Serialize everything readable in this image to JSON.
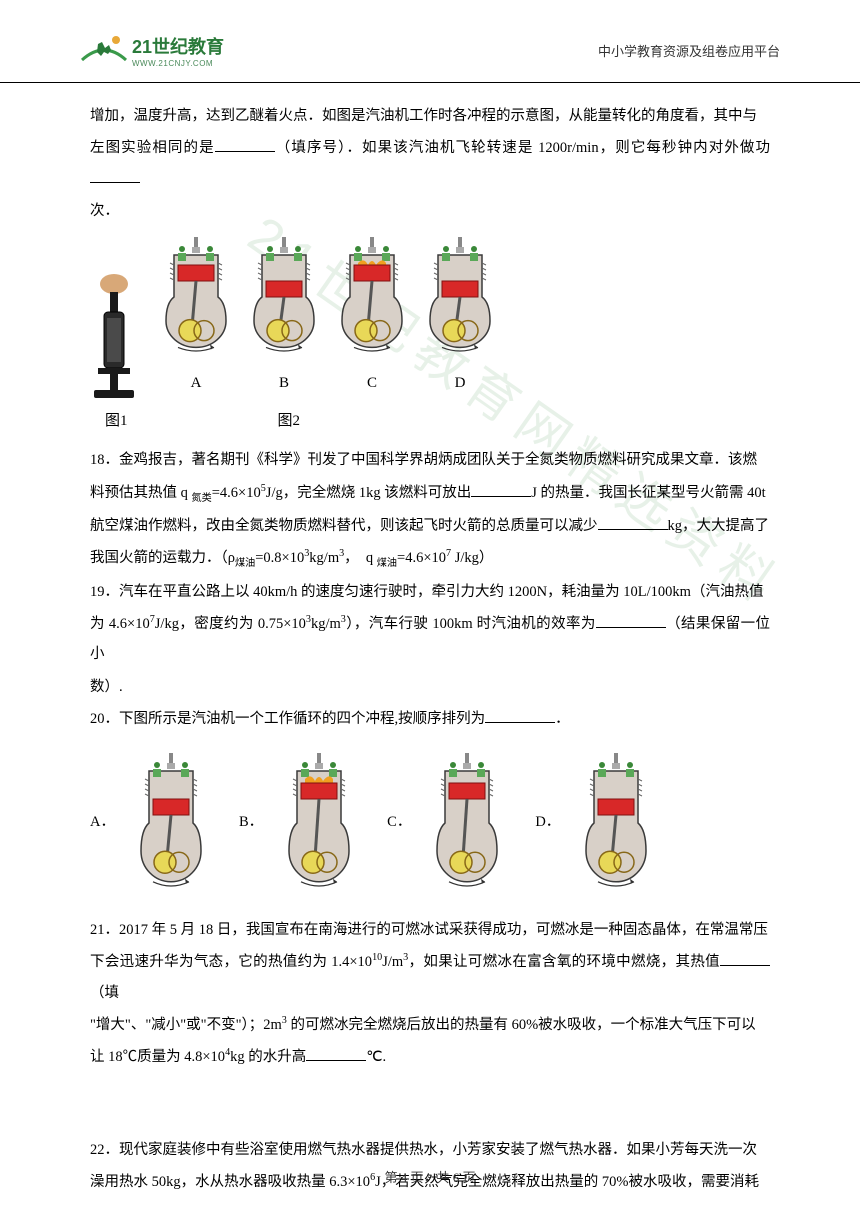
{
  "header": {
    "logo_main": "21世纪教育",
    "logo_sub": "WWW.21CNJY.COM",
    "right_text": "中小学教育资源及组卷应用平台"
  },
  "watermark_text": "21世纪教育网精选资料",
  "q17_cont": {
    "line1": "增加，温度升高，达到乙醚着火点．如图是汽油机工作时各冲程的示意图，从能量转化的角度看，其中与",
    "line2_a": "左图实验相同的是",
    "line2_b": "（填序号）．如果该汽油机飞轮转速是 1200r/min，则它每秒钟内对外做功",
    "line3": "次．"
  },
  "fig_labels": {
    "fig1": "图1",
    "fig2": "图2"
  },
  "engine_labels": {
    "a": "A",
    "b": "B",
    "c": "C",
    "d": "D"
  },
  "q18": {
    "line1_a": "18．金鸡报吉，著名期刊《科学》刊发了中国科学界胡炳成团队关于全氮类物质燃料研究成果文章．该燃",
    "line2_a": "料预估其热值 q ",
    "sub1": "氮类",
    "line2_b": "=4.6×10",
    "sup1": "5",
    "line2_c": "J/g，完全燃烧 1kg 该燃料可放出",
    "line2_d": "J 的热量．我国长征某型号火箭需 40t",
    "line3_a": "航空煤油作燃料，改由全氮类物质燃料替代，则该起飞时火箭的总质量可以减少",
    "line3_b": "kg，大大提高了",
    "line4_a": "我国火箭的运载力．（ρ",
    "sub2": "煤油",
    "line4_b": "=0.8×10",
    "sup2": "3",
    "line4_c": "kg/m",
    "sup3": "3",
    "line4_d": "，　q ",
    "sub3": "煤油",
    "line4_e": "=4.6×10",
    "sup4": "7",
    "line4_f": " J/kg）"
  },
  "q19": {
    "line1": "19．汽车在平直公路上以 40km/h 的速度匀速行驶时，牵引力大约 1200N，耗油量为 10L/100km（汽油热值",
    "line2_a": "为 4.6×10",
    "sup1": "7",
    "line2_b": "J/kg，密度约为 0.75×10",
    "sup2": "3",
    "line2_c": "kg/m",
    "sup3": "3",
    "line2_d": "），汽车行驶 100km 时汽油机的效率为",
    "line2_e": "（结果保留一位小",
    "line3": "数）."
  },
  "q20": {
    "text_a": "20．下图所示是汽油机一个工作循环的四个冲程,按顺序排列为",
    "text_b": "．",
    "labels": {
      "a": "A．",
      "b": "B．",
      "c": "C．",
      "d": "D．"
    }
  },
  "q21": {
    "line1": "21．2017 年 5 月 18 日，我国宣布在南海进行的可燃冰试采获得成功，可燃冰是一种固态晶体，在常温常压",
    "line2_a": "下会迅速升华为气态，它的热值约为 1.4×10",
    "sup1": "10",
    "line2_b": "J/m",
    "sup2": "3",
    "line2_c": "，如果让可燃冰在富含氧的环境中燃烧，其热值",
    "line2_d": "（填",
    "line3_a": "\"增大\"、\"减小\"或\"不变\"）；2m",
    "sup3": "3",
    "line3_b": " 的可燃冰完全燃烧后放出的热量有 60%被水吸收，一个标准大气压下可以",
    "line4_a": "让 18℃质量为 4.8×10",
    "sup4": "4",
    "line4_b": "kg 的水升高",
    "line4_c": "℃."
  },
  "q22": {
    "line1": "22．现代家庭装修中有些浴室使用燃气热水器提供热水，小芳家安装了燃气热水器．如果小芳每天洗一次",
    "line2_a": "澡用热水 50kg，水从热水器吸收热量 6.3×10",
    "sup1": "6",
    "line2_b": "J，若天然气完全燃烧释放出热量的 70%被水吸收，需要消耗"
  },
  "footer": {
    "text": "第 4 页，共 6 页"
  },
  "svg": {
    "pump": {
      "hand_fill": "#d8a878",
      "body_fill": "#1a1a1a",
      "base_fill": "#2a2a2a"
    },
    "engine": {
      "body_fill": "#d8d0c8",
      "body_stroke": "#3a3a3a",
      "piston_fill": "#d82828",
      "valve_fill": "#5aa858",
      "flame_fill": "#f0a020",
      "cam_fill": "#e8d858",
      "cam_stroke": "#886818",
      "small_green": "#3a8838"
    },
    "logo": {
      "arc_fill": "#3a9a4a",
      "figure_fill": "#2a7a3a",
      "ball_fill": "#e8a838"
    }
  }
}
